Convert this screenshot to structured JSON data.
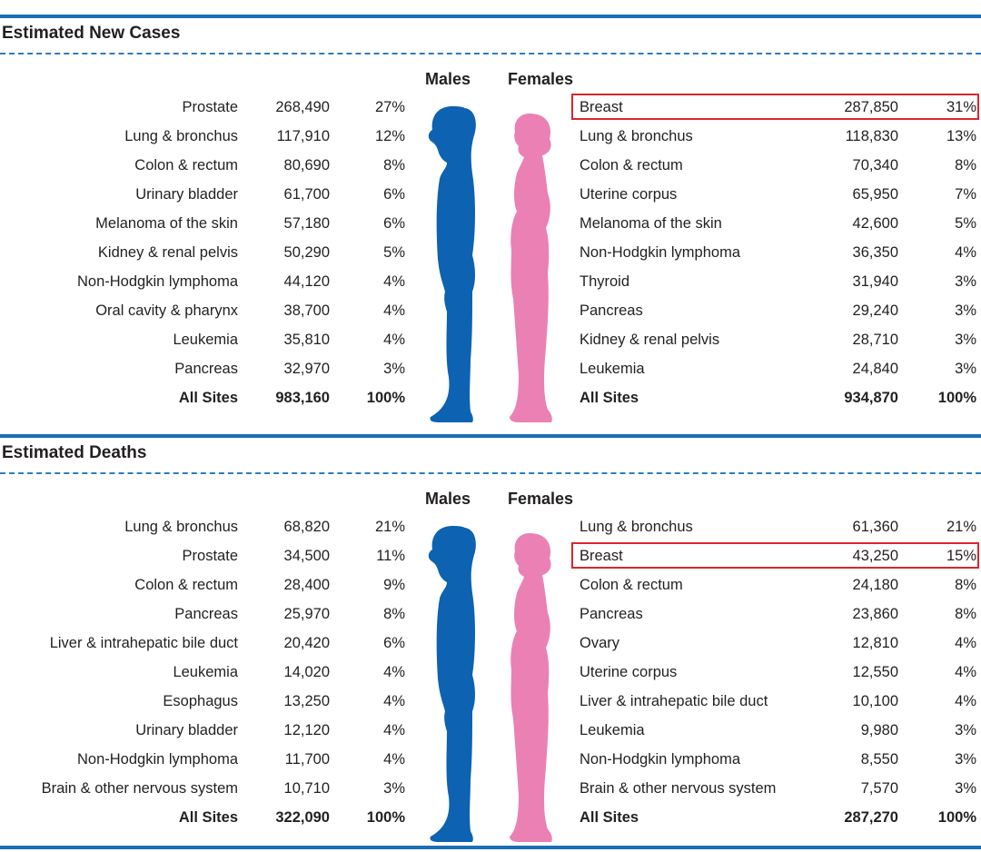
{
  "colors": {
    "rule": "#1b6fb5",
    "dash": "#2c7cc0",
    "male": "#0d62b1",
    "female": "#ea80b3",
    "highlight": "#d9262c",
    "text": "#231f20"
  },
  "chart_data": [
    {
      "type": "table",
      "title": "Estimated New Cases",
      "males_label": "Males",
      "females_label": "Females",
      "males": [
        {
          "site": "Prostate",
          "count": "268,490",
          "pct": "27%"
        },
        {
          "site": "Lung & bronchus",
          "count": "117,910",
          "pct": "12%"
        },
        {
          "site": "Colon & rectum",
          "count": "80,690",
          "pct": "8%"
        },
        {
          "site": "Urinary bladder",
          "count": "61,700",
          "pct": "6%"
        },
        {
          "site": "Melanoma of the skin",
          "count": "57,180",
          "pct": "6%"
        },
        {
          "site": "Kidney & renal pelvis",
          "count": "50,290",
          "pct": "5%"
        },
        {
          "site": "Non-Hodgkin lymphoma",
          "count": "44,120",
          "pct": "4%"
        },
        {
          "site": "Oral cavity & pharynx",
          "count": "38,700",
          "pct": "4%"
        },
        {
          "site": "Leukemia",
          "count": "35,810",
          "pct": "4%"
        },
        {
          "site": "Pancreas",
          "count": "32,970",
          "pct": "3%"
        }
      ],
      "males_total": {
        "site": "All Sites",
        "count": "983,160",
        "pct": "100%"
      },
      "females": [
        {
          "site": "Breast",
          "count": "287,850",
          "pct": "31%",
          "highlight": true
        },
        {
          "site": "Lung & bronchus",
          "count": "118,830",
          "pct": "13%"
        },
        {
          "site": "Colon & rectum",
          "count": "70,340",
          "pct": "8%"
        },
        {
          "site": "Uterine corpus",
          "count": "65,950",
          "pct": "7%"
        },
        {
          "site": "Melanoma of the skin",
          "count": "42,600",
          "pct": "5%"
        },
        {
          "site": "Non-Hodgkin lymphoma",
          "count": "36,350",
          "pct": "4%"
        },
        {
          "site": "Thyroid",
          "count": "31,940",
          "pct": "3%"
        },
        {
          "site": "Pancreas",
          "count": "29,240",
          "pct": "3%"
        },
        {
          "site": "Kidney & renal pelvis",
          "count": "28,710",
          "pct": "3%"
        },
        {
          "site": "Leukemia",
          "count": "24,840",
          "pct": "3%"
        }
      ],
      "females_total": {
        "site": "All Sites",
        "count": "934,870",
        "pct": "100%"
      }
    },
    {
      "type": "table",
      "title": "Estimated Deaths",
      "males_label": "Males",
      "females_label": "Females",
      "males": [
        {
          "site": "Lung & bronchus",
          "count": "68,820",
          "pct": "21%"
        },
        {
          "site": "Prostate",
          "count": "34,500",
          "pct": "11%"
        },
        {
          "site": "Colon & rectum",
          "count": "28,400",
          "pct": "9%"
        },
        {
          "site": "Pancreas",
          "count": "25,970",
          "pct": "8%"
        },
        {
          "site": "Liver & intrahepatic bile duct",
          "count": "20,420",
          "pct": "6%"
        },
        {
          "site": "Leukemia",
          "count": "14,020",
          "pct": "4%"
        },
        {
          "site": "Esophagus",
          "count": "13,250",
          "pct": "4%"
        },
        {
          "site": "Urinary bladder",
          "count": "12,120",
          "pct": "4%"
        },
        {
          "site": "Non-Hodgkin lymphoma",
          "count": "11,700",
          "pct": "4%"
        },
        {
          "site": "Brain & other nervous system",
          "count": "10,710",
          "pct": "3%"
        }
      ],
      "males_total": {
        "site": "All Sites",
        "count": "322,090",
        "pct": "100%"
      },
      "females": [
        {
          "site": "Lung & bronchus",
          "count": "61,360",
          "pct": "21%"
        },
        {
          "site": "Breast",
          "count": "43,250",
          "pct": "15%",
          "highlight": true
        },
        {
          "site": "Colon & rectum",
          "count": "24,180",
          "pct": "8%"
        },
        {
          "site": "Pancreas",
          "count": "23,860",
          "pct": "8%"
        },
        {
          "site": "Ovary",
          "count": "12,810",
          "pct": "4%"
        },
        {
          "site": "Uterine corpus",
          "count": "12,550",
          "pct": "4%"
        },
        {
          "site": "Liver & intrahepatic bile duct",
          "count": "10,100",
          "pct": "4%"
        },
        {
          "site": "Leukemia",
          "count": "9,980",
          "pct": "3%"
        },
        {
          "site": "Non-Hodgkin lymphoma",
          "count": "8,550",
          "pct": "3%"
        },
        {
          "site": "Brain & other nervous system",
          "count": "7,570",
          "pct": "3%"
        }
      ],
      "females_total": {
        "site": "All Sites",
        "count": "287,270",
        "pct": "100%"
      }
    }
  ]
}
